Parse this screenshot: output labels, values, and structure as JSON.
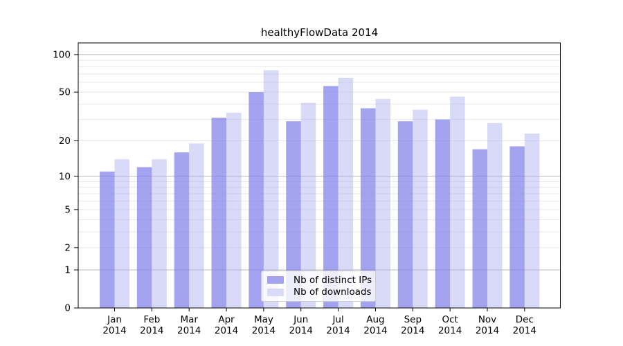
{
  "figure": {
    "background": "#ffffff",
    "text_color": "#000000"
  },
  "legend": {
    "position": "lower center",
    "items": [
      {
        "label": "Nb of distinct IPs",
        "color": "#a3a3f0"
      },
      {
        "label": "Nb of downloads",
        "color": "#d9d9f8"
      }
    ]
  },
  "chart_data": {
    "type": "bar",
    "title": "healthyFlowData 2014",
    "xlabel": "",
    "ylabel": "",
    "year_label": "2014",
    "categories": [
      "Jan",
      "Feb",
      "Mar",
      "Apr",
      "May",
      "Jun",
      "Jul",
      "Aug",
      "Sep",
      "Oct",
      "Nov",
      "Dec"
    ],
    "series": [
      {
        "name": "Nb of distinct IPs",
        "values": [
          11,
          12,
          16,
          31,
          50,
          29,
          56,
          37,
          29,
          30,
          17,
          18
        ],
        "color": "#a3a3f0",
        "fill": "rgba(127,127,234,0.72)"
      },
      {
        "name": "Nb of downloads",
        "values": [
          14,
          14,
          19,
          34,
          75,
          41,
          65,
          44,
          36,
          46,
          28,
          23
        ],
        "color": "#d9d9f8",
        "fill": "rgba(171,171,239,0.45)"
      }
    ],
    "yscale": "log1p",
    "ylim": [
      0,
      124
    ],
    "yticks": [
      0,
      1,
      2,
      5,
      10,
      20,
      50,
      100
    ],
    "major_gridlines": [
      1,
      10,
      100
    ],
    "minor_gridlines": [
      2,
      3,
      4,
      5,
      6,
      7,
      8,
      9,
      20,
      30,
      40,
      50,
      60,
      70,
      80,
      90
    ],
    "grid": true,
    "major_grid_color": "#b8b8b8",
    "minor_grid_color": "#e7e7e7",
    "axis_color": "#000000"
  }
}
